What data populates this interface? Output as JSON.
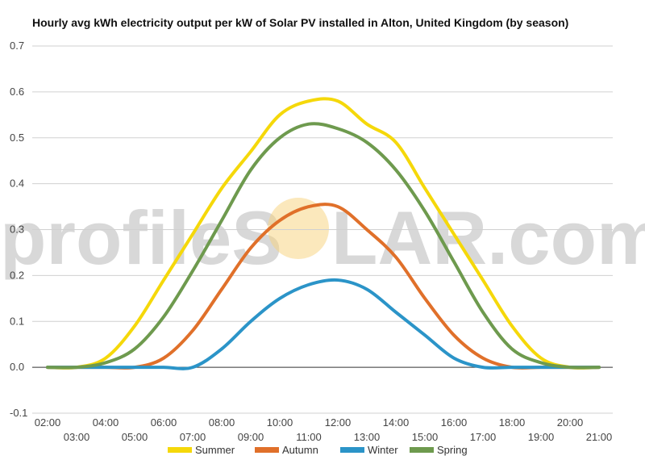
{
  "watermark": {
    "left_text": "profileS",
    "right_text": "LAR.com",
    "sun_color": "#f7d27a"
  },
  "chart_data": {
    "type": "line",
    "title": "Hourly avg kWh electricity output per kW of Solar PV installed in Alton, United Kingdom (by season)",
    "xlabel": "",
    "ylabel": "",
    "x": [
      "02:00",
      "03:00",
      "04:00",
      "05:00",
      "06:00",
      "07:00",
      "08:00",
      "09:00",
      "10:00",
      "11:00",
      "12:00",
      "13:00",
      "14:00",
      "15:00",
      "16:00",
      "17:00",
      "18:00",
      "19:00",
      "20:00",
      "21:00"
    ],
    "ylim": [
      -0.1,
      0.7
    ],
    "yticks": [
      "-0.1",
      "0.0",
      "0.1",
      "0.2",
      "0.3",
      "0.4",
      "0.5",
      "0.6",
      "0.7"
    ],
    "grid": true,
    "legend_position": "bottom",
    "series": [
      {
        "name": "Summer",
        "color": "#f5d80a",
        "values": [
          0.0,
          0.0,
          0.02,
          0.09,
          0.19,
          0.29,
          0.39,
          0.47,
          0.55,
          0.58,
          0.58,
          0.53,
          0.49,
          0.39,
          0.29,
          0.19,
          0.09,
          0.02,
          0.0,
          0.0
        ]
      },
      {
        "name": "Autumn",
        "color": "#e0702a",
        "values": [
          0.0,
          0.0,
          0.0,
          0.0,
          0.02,
          0.08,
          0.17,
          0.26,
          0.32,
          0.35,
          0.35,
          0.3,
          0.24,
          0.15,
          0.07,
          0.02,
          0.0,
          0.0,
          0.0,
          0.0
        ]
      },
      {
        "name": "Winter",
        "color": "#2b94c8",
        "values": [
          0.0,
          0.0,
          0.0,
          0.0,
          0.0,
          0.0,
          0.04,
          0.1,
          0.15,
          0.18,
          0.19,
          0.17,
          0.12,
          0.07,
          0.02,
          0.0,
          0.0,
          0.0,
          0.0,
          0.0
        ]
      },
      {
        "name": "Spring",
        "color": "#6e9a4e",
        "values": [
          0.0,
          0.0,
          0.01,
          0.04,
          0.11,
          0.21,
          0.32,
          0.43,
          0.5,
          0.53,
          0.52,
          0.49,
          0.43,
          0.34,
          0.23,
          0.12,
          0.04,
          0.01,
          0.0,
          0.0
        ]
      }
    ]
  }
}
